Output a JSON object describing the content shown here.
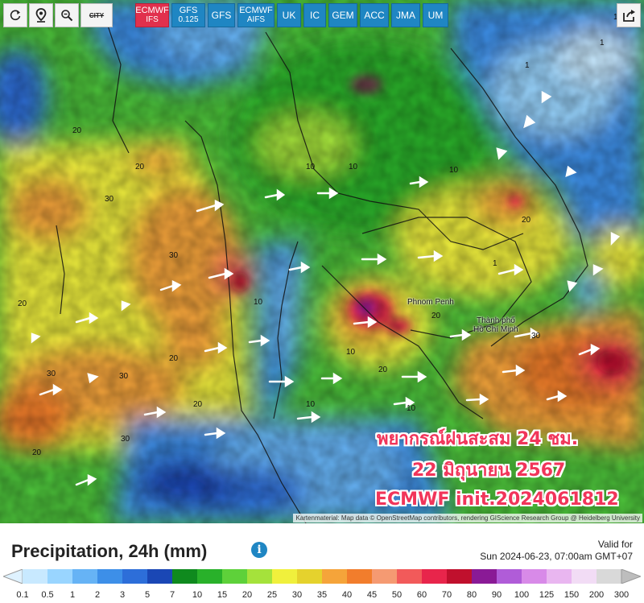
{
  "toolbar": {
    "tools": [
      {
        "name": "refresh-icon"
      },
      {
        "name": "location-pin-icon"
      },
      {
        "name": "zoom-icon"
      }
    ],
    "city_toggle": "CITY",
    "models": [
      {
        "l1": "ECMWF",
        "l2": "IFS",
        "active": true
      },
      {
        "l1": "GFS",
        "l2": "0.125",
        "active": false
      },
      {
        "l1": "GFS",
        "l2": "",
        "active": false
      },
      {
        "l1": "ECMWF",
        "l2": "AIFS",
        "active": false
      },
      {
        "l1": "UK",
        "l2": "",
        "active": false
      },
      {
        "l1": "IC",
        "l2": "",
        "active": false
      },
      {
        "l1": "GEM",
        "l2": "",
        "active": false
      },
      {
        "l1": "ACC",
        "l2": "",
        "active": false
      },
      {
        "l1": "JMA",
        "l2": "",
        "active": false
      },
      {
        "l1": "UM",
        "l2": "",
        "active": false
      }
    ],
    "share_icon": "share-icon"
  },
  "map": {
    "places": {
      "phnom_penh": "Phnom Penh",
      "hcm_1": "Thành phố",
      "hcm_2": "Hồ Chí Minh"
    },
    "overlay": {
      "line1": "พยากรณ์ฝนสะสม 24 ชม.",
      "line2": "22 มิถุนายน 2567",
      "line3": "ECMWF init.2024061812"
    },
    "attribution": "Kartenmaterial: Map data © OpenStreetMap contributors, rendering GIScience Research Group @ Heidelberg University",
    "contour_labels": [
      "1",
      "10",
      "20",
      "30",
      "10",
      "20",
      "30",
      "20",
      "10",
      "1",
      "30",
      "20",
      "10",
      "30",
      "20",
      "20",
      "30",
      "10",
      "20",
      "1",
      "10",
      "20",
      "30",
      "10",
      "20",
      "1"
    ]
  },
  "panel": {
    "title": "Precipitation, 24h (mm)",
    "info_icon": "info-icon",
    "valid_label": "Valid for",
    "valid_time": "Sun 2024-06-23, 07:00am GMT+07"
  },
  "legend": {
    "ticks": [
      "0.1",
      "0.5",
      "1",
      "2",
      "3",
      "5",
      "7",
      "10",
      "15",
      "20",
      "25",
      "30",
      "35",
      "40",
      "45",
      "50",
      "60",
      "70",
      "80",
      "90",
      "100",
      "125",
      "150",
      "200",
      "300"
    ],
    "colors": [
      "#c8e9ff",
      "#99d5ff",
      "#66b3f5",
      "#3d8fe8",
      "#2d6ed9",
      "#1a47b5",
      "#0f8a1e",
      "#29b12a",
      "#5ed13a",
      "#a5e23b",
      "#f0f03c",
      "#e5d22d",
      "#f5a43a",
      "#f27d2c",
      "#f59a72",
      "#f25a5a",
      "#e8254b",
      "#c0102d",
      "#8a1a96",
      "#b05cd8",
      "#d88ae8",
      "#e9b6f0",
      "#f2dcf5",
      "#d9d9d9"
    ]
  }
}
